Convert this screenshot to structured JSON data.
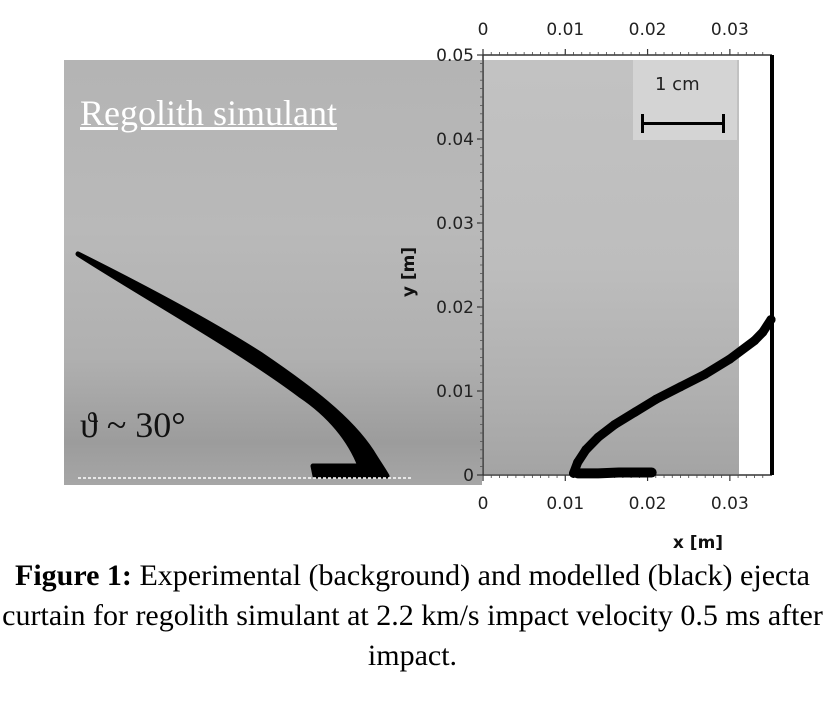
{
  "figure": {
    "left_title": "Regolith simulant",
    "angle_label": "ϑ ~ 30°",
    "scale_label": "1 cm",
    "caption_lead": "Figure 1:",
    "caption_text": " Experimental (background) and modelled (black) ejecta curtain for regolith simulant at 2.2 km/s impact velocity 0.5 ms after impact."
  },
  "chart_data": {
    "type": "scatter",
    "xlabel": "x [m]",
    "ylabel": "y [m]",
    "xlim": [
      0,
      0.035
    ],
    "ylim": [
      0,
      0.05
    ],
    "x_ticks": [
      "0",
      "0.01",
      "0.02",
      "0.03"
    ],
    "y_ticks": [
      "0",
      "0.01",
      "0.02",
      "0.03",
      "0.04",
      "0.05"
    ],
    "series": [
      {
        "values": [
          [
            0.011,
            0.0002
          ],
          [
            0.0115,
            0.0015
          ],
          [
            0.0125,
            0.003
          ],
          [
            0.014,
            0.0045
          ],
          [
            0.016,
            0.006
          ],
          [
            0.0185,
            0.0075
          ],
          [
            0.021,
            0.009
          ],
          [
            0.024,
            0.0105
          ],
          [
            0.027,
            0.012
          ],
          [
            0.03,
            0.0138
          ],
          [
            0.033,
            0.016
          ],
          [
            0.034,
            0.017
          ],
          [
            0.035,
            0.0185
          ]
        ]
      },
      {
        "values": [
          [
            0.0115,
            0.0002
          ],
          [
            0.014,
            0.0002
          ],
          [
            0.0165,
            0.0003
          ],
          [
            0.019,
            0.0003
          ],
          [
            0.0205,
            0.0003
          ]
        ]
      }
    ]
  },
  "colors": {
    "curtain": "#000000",
    "photo_left": "#b4b4b4",
    "photo_right": "#c0c0c0"
  }
}
